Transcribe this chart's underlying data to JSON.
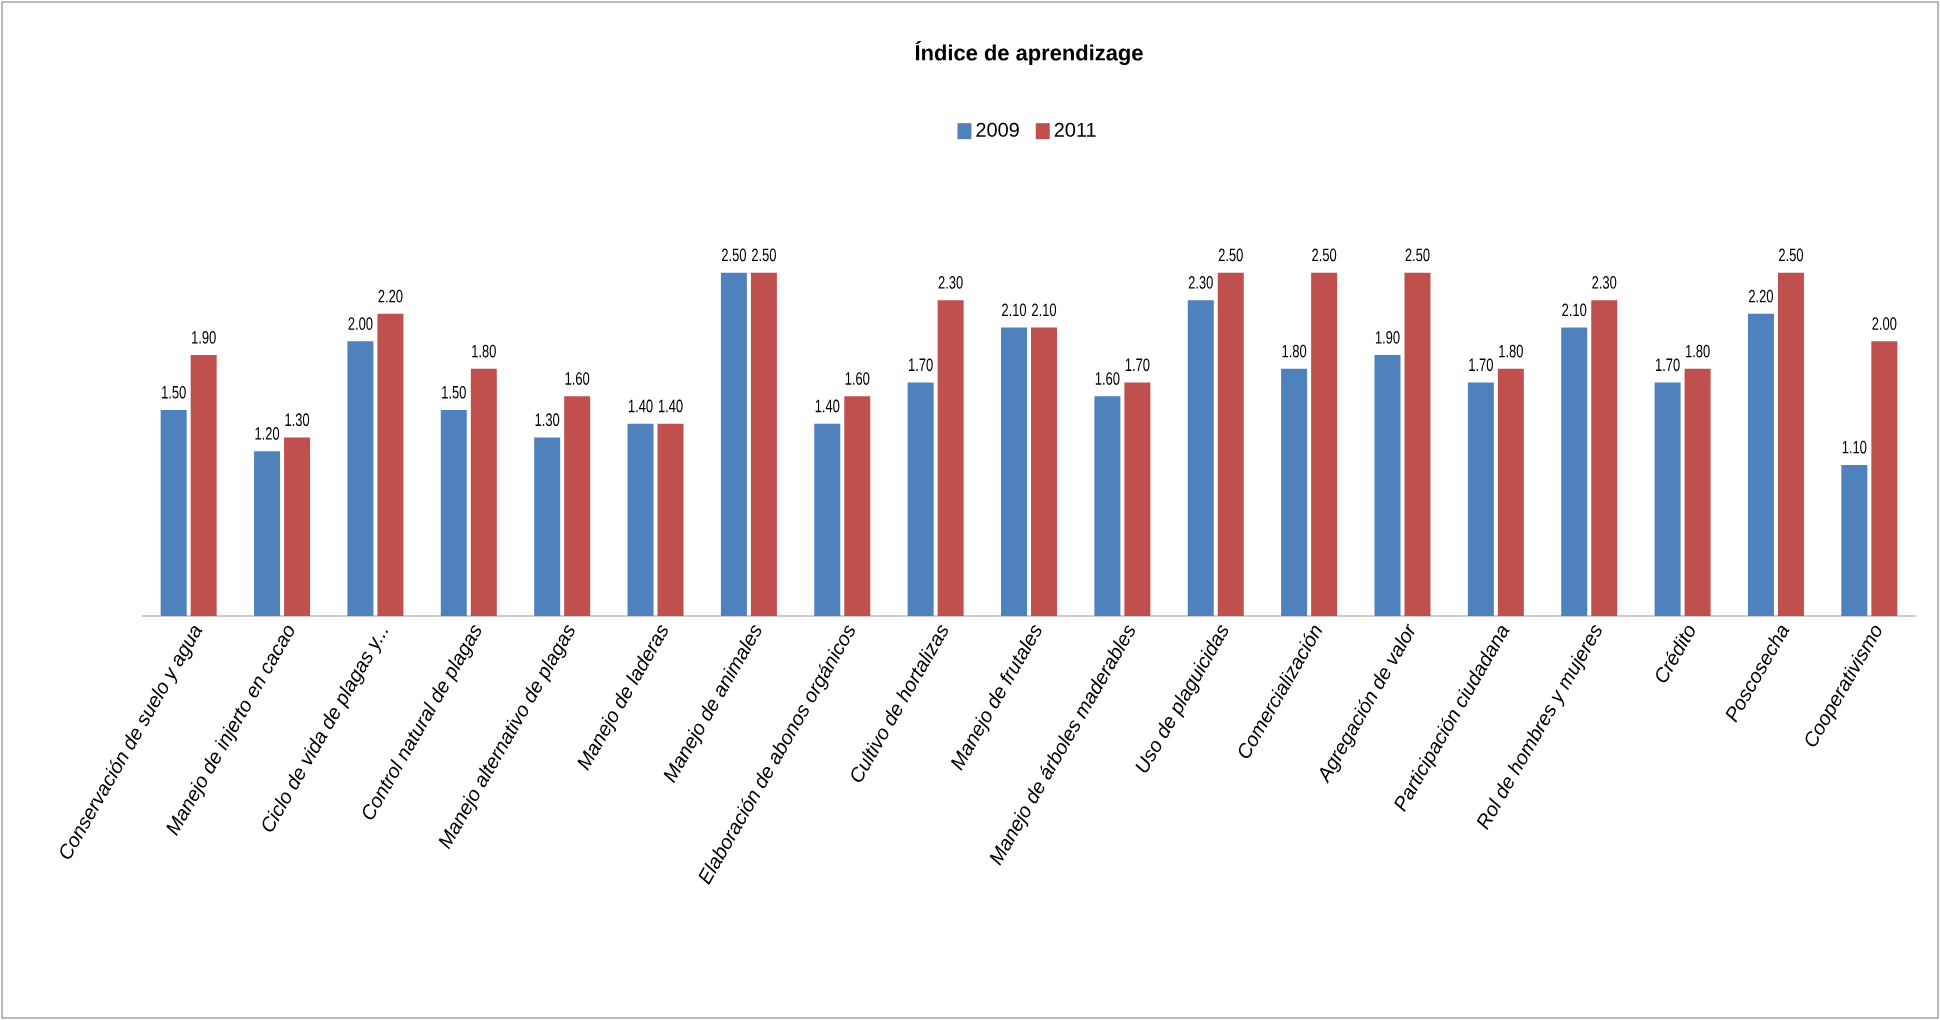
{
  "chart_data": {
    "type": "bar",
    "title": "Índice de aprendizage",
    "categories": [
      "Conservación de suelo y agua",
      "Manejo de injerto en cacao",
      "Ciclo de vida de plagas y...",
      "Control natural de plagas",
      "Manejo alternativo de plagas",
      "Manejo de laderas",
      "Manejo de animales",
      "Elaboración de abonos orgánicos",
      "Cultivo de hortalizas",
      "Manejo de frutales",
      "Manejo de árboles maderables",
      "Uso de plaguicidas",
      "Comercialización",
      "Agregación de valor",
      "Participación ciudadana",
      "Rol de hombres y mujeres",
      "Crédito",
      "Poscosecha",
      "Cooperativismo"
    ],
    "series": [
      {
        "name": "2009",
        "color": "#4f81bd",
        "values": [
          1.5,
          1.2,
          2.0,
          1.5,
          1.3,
          1.4,
          2.5,
          1.4,
          1.7,
          2.1,
          1.6,
          2.3,
          1.8,
          1.9,
          1.7,
          2.1,
          1.7,
          2.2,
          1.1
        ],
        "value_labels": [
          "1.50",
          "1.20",
          "2.00",
          "1.50",
          "1.30",
          "1.40",
          "2.50",
          "1.40",
          "1.70",
          "2.10",
          "1.60",
          "2.30",
          "1.80",
          "1.90",
          "1.70",
          "2.10",
          "1.70",
          "2.20",
          "1.10"
        ]
      },
      {
        "name": "2011",
        "color": "#c0504d",
        "values": [
          1.9,
          1.3,
          2.2,
          1.8,
          1.6,
          1.4,
          2.5,
          1.6,
          2.3,
          2.1,
          1.7,
          2.5,
          2.5,
          2.5,
          1.8,
          2.3,
          1.8,
          2.5,
          2.0
        ],
        "value_labels": [
          "1.90",
          "1.30",
          "2.20",
          "1.80",
          "1.60",
          "1.40",
          "2.50",
          "1.60",
          "2.30",
          "2.10",
          "1.70",
          "2.50",
          "2.50",
          "2.50",
          "1.80",
          "2.30",
          "1.80",
          "2.50",
          "2.00"
        ]
      }
    ],
    "tick_labels": "x",
    "legend": "top"
  }
}
